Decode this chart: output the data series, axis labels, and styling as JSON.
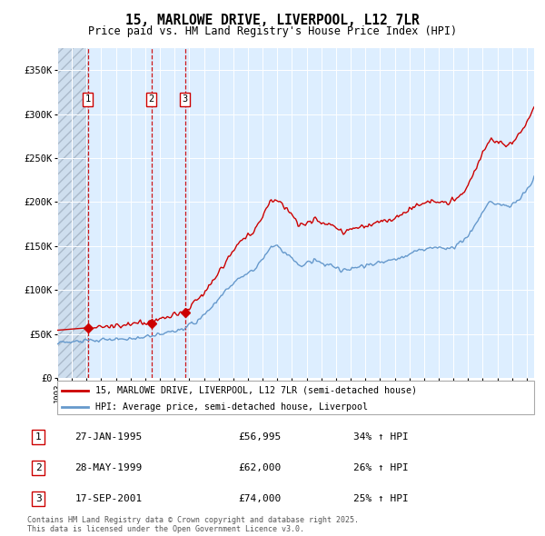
{
  "title": "15, MARLOWE DRIVE, LIVERPOOL, L12 7LR",
  "subtitle": "Price paid vs. HM Land Registry's House Price Index (HPI)",
  "legend_label_red": "15, MARLOWE DRIVE, LIVERPOOL, L12 7LR (semi-detached house)",
  "legend_label_blue": "HPI: Average price, semi-detached house, Liverpool",
  "footer": "Contains HM Land Registry data © Crown copyright and database right 2025.\nThis data is licensed under the Open Government Licence v3.0.",
  "transactions": [
    {
      "num": 1,
      "date": "27-JAN-1995",
      "price": 56995,
      "year": 1995.08,
      "hpi_pct": "34% ↑ HPI"
    },
    {
      "num": 2,
      "date": "28-MAY-1999",
      "price": 62000,
      "year": 1999.41,
      "hpi_pct": "26% ↑ HPI"
    },
    {
      "num": 3,
      "date": "17-SEP-2001",
      "price": 74000,
      "year": 2001.71,
      "hpi_pct": "25% ↑ HPI"
    }
  ],
  "ylim": [
    0,
    375000
  ],
  "xlim_start": 1993.0,
  "xlim_end": 2025.5,
  "hatch_end_year": 1995.08,
  "background_color": "#ffffff",
  "plot_bg_color": "#ddeeff",
  "red_color": "#cc0000",
  "blue_color": "#6699cc",
  "grid_color": "#ffffff",
  "dashed_line_color": "#cc0000",
  "yticks": [
    0,
    50000,
    100000,
    150000,
    200000,
    250000,
    300000,
    350000
  ],
  "ylabels": [
    "£0",
    "£50K",
    "£100K",
    "£150K",
    "£200K",
    "£250K",
    "£300K",
    "£350K"
  ]
}
